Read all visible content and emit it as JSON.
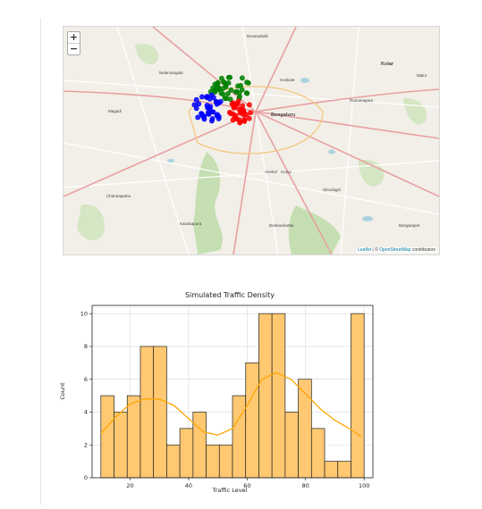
{
  "map": {
    "zoom_in": "+",
    "zoom_out": "−",
    "attribution_leaflet": "Leaflet",
    "attribution_sep": " | © ",
    "attribution_osm": "OpenStreetMap",
    "attribution_tail": " contributors",
    "places": [
      {
        "name": "Devanahalli",
        "big": false
      },
      {
        "name": "Kolar",
        "big": true
      },
      {
        "name": "Nelamangala",
        "big": false
      },
      {
        "name": "Hoskote",
        "big": false
      },
      {
        "name": "Malur",
        "big": false
      },
      {
        "name": "Magadi",
        "big": false
      },
      {
        "name": "Bengaluru",
        "big": true
      },
      {
        "name": "Ramanagara",
        "big": false
      },
      {
        "name": "Channapatna",
        "big": false
      },
      {
        "name": "Anekal",
        "big": false
      },
      {
        "name": "Hosur",
        "big": false
      },
      {
        "name": "Kanakapura",
        "big": false
      },
      {
        "name": "Denkanikottai",
        "big": false
      },
      {
        "name": "Bangarapet",
        "big": false
      },
      {
        "name": "Shoolagiri",
        "big": false
      }
    ],
    "cluster_colors": {
      "green": "#008000",
      "blue": "#0000ff",
      "red": "#ff0000"
    },
    "colors": {
      "land": "#f2efe8",
      "forest": "#c5dfb3",
      "road_major": "#e8a0a0",
      "road_minor": "#ffffff",
      "water": "#aad3df"
    }
  },
  "chart_data": {
    "type": "histogram",
    "title": "Simulated Traffic Density",
    "xlabel": "Traffic Level",
    "ylabel": "Count",
    "xlim": [
      7,
      103
    ],
    "ylim": [
      0,
      10.5
    ],
    "xticks": [
      20,
      40,
      60,
      80,
      100
    ],
    "yticks": [
      0,
      2,
      4,
      6,
      8,
      10
    ],
    "bin_start": 10,
    "bin_width": 4.5,
    "counts": [
      5,
      4,
      5,
      8,
      8,
      2,
      3,
      4,
      2,
      2,
      5,
      7,
      10,
      10,
      4,
      6,
      3,
      1,
      1,
      10
    ],
    "kde": {
      "x": [
        10,
        15,
        20,
        25,
        30,
        35,
        40,
        45,
        50,
        55,
        60,
        65,
        70,
        75,
        80,
        85,
        90,
        95,
        99
      ],
      "y": [
        2.7,
        3.7,
        4.5,
        4.8,
        4.8,
        4.4,
        3.6,
        2.8,
        2.6,
        3.0,
        4.4,
        6.0,
        6.4,
        6.0,
        5.1,
        4.2,
        3.5,
        3.0,
        2.5
      ]
    },
    "bar_color": "#ffc871",
    "line_color": "#ffa500",
    "grid": true
  }
}
